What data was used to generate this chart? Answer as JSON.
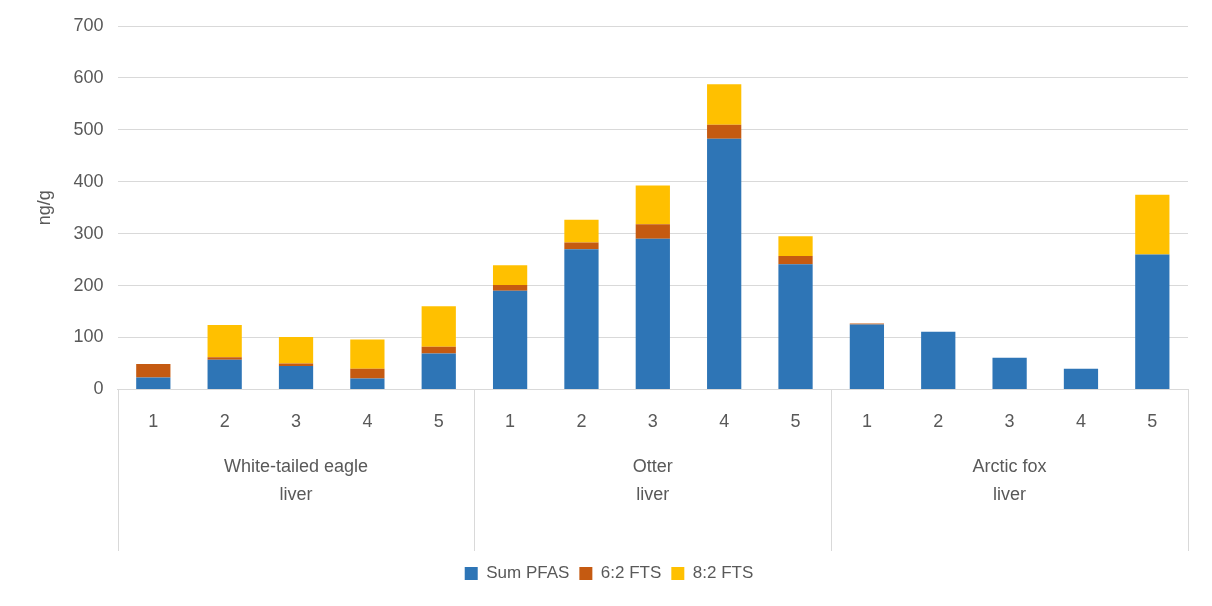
{
  "chart_data": {
    "type": "bar",
    "stacked": true,
    "ylabel": "ng/g",
    "categories": [
      "1",
      "2",
      "3",
      "4",
      "5",
      "1",
      "2",
      "3",
      "4",
      "5",
      "1",
      "2",
      "3",
      "4",
      "5"
    ],
    "annotations": [
      "White-tailed eagle\nliver",
      "Otter\nliver",
      "Arctic fox\nliver"
    ],
    "series": [
      {
        "name": "Sum PFAS",
        "color": "#2e75b6",
        "values": [
          23,
          57,
          45,
          21,
          69,
          190,
          270,
          290,
          483,
          241,
          125,
          111,
          61,
          40,
          260
        ]
      },
      {
        "name": "6:2 FTS",
        "color": "#c55a11",
        "values": [
          26,
          5,
          5,
          19,
          13,
          11,
          13,
          28,
          27,
          16,
          2,
          0,
          0,
          0,
          0
        ]
      },
      {
        "name": "8:2 FTS",
        "color": "#ffc000",
        "values": [
          0,
          62,
          51,
          56,
          78,
          38,
          44,
          75,
          78,
          38,
          0,
          0,
          0,
          0,
          115
        ]
      }
    ],
    "ylim": [
      0,
      700
    ],
    "yticks": [
      0,
      100,
      200,
      300,
      400,
      500,
      600,
      700
    ],
    "grid": "y",
    "legend": "bottom"
  }
}
